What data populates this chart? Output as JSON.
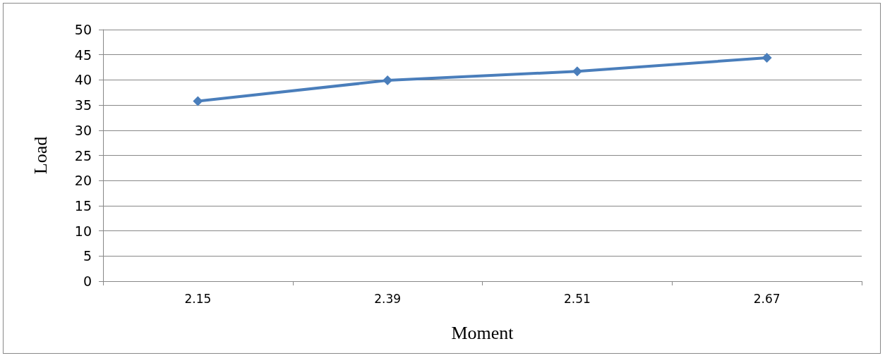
{
  "chart_data": {
    "type": "line",
    "xlabel": "Moment",
    "ylabel": "Load",
    "categories": [
      "2.15",
      "2.39",
      "2.51",
      "2.67"
    ],
    "series": [
      {
        "color": "#4a7ebb",
        "values": [
          35.8,
          39.9,
          41.7,
          44.4
        ]
      }
    ],
    "ylim": [
      0,
      50
    ],
    "yticks": [
      0,
      5,
      10,
      15,
      20,
      25,
      30,
      35,
      40,
      45,
      50
    ],
    "grid": "y",
    "marker": "diamond",
    "line_style": "solid"
  }
}
